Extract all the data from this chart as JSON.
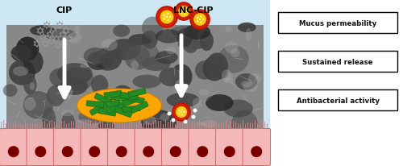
{
  "fig_width": 5.0,
  "fig_height": 2.07,
  "dpi": 100,
  "bg_color": "#ffffff",
  "title_cip": "CIP",
  "title_lnc": "LNC-CIP",
  "label1": "Mucus permeability",
  "label2": "Sustained release",
  "label3": "Antibacterial activity",
  "nanocap_outer": "#cc2200",
  "nanocap_inner": "#ffcc00",
  "bacteria_color": "#228B22",
  "bacteria_bg": "#FFA500",
  "box_text_color": "#111111",
  "light_blue_bg": "#cce6f4",
  "mucus_dark": "#4a4a4a",
  "mucus_mid": "#7a7a7a",
  "mucus_light": "#a0a0a0",
  "cell_fill": "#f5b8b8",
  "cell_border": "#d47070",
  "cell_nucleus": "#7a0000",
  "cilia_color": "#e08080"
}
